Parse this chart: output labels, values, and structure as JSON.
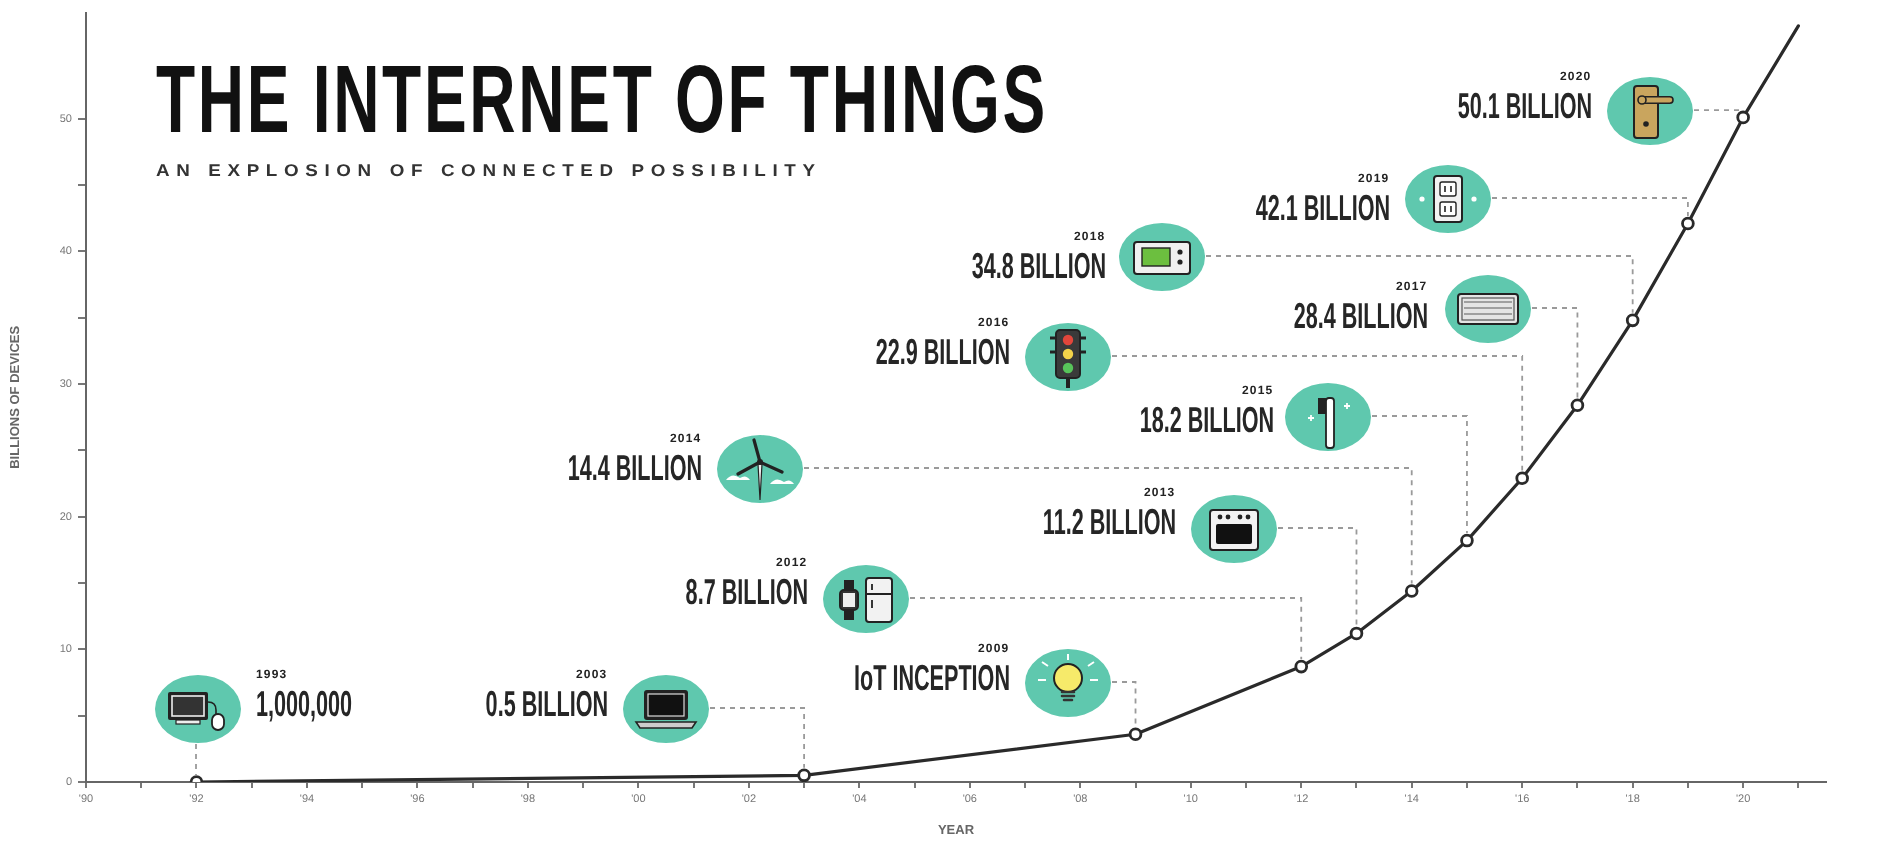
{
  "chart_data": {
    "type": "line",
    "title": "THE INTERNET OF THINGS",
    "subtitle": "AN EXPLOSION OF CONNECTED POSSIBILITY",
    "xlabel": "YEAR",
    "ylabel": "BILLIONS OF DEVICES",
    "xlim": [
      1990,
      2021.5
    ],
    "xticks": [
      {
        "value": 1990,
        "label": "'90"
      },
      {
        "value": 1991,
        "label": null
      },
      {
        "value": 1992,
        "label": "'92"
      },
      {
        "value": 1993,
        "label": null
      },
      {
        "value": 1994,
        "label": "'94"
      },
      {
        "value": 1995,
        "label": null
      },
      {
        "value": 1996,
        "label": "'96"
      },
      {
        "value": 1997,
        "label": null
      },
      {
        "value": 1998,
        "label": "'98"
      },
      {
        "value": 1999,
        "label": null
      },
      {
        "value": 2000,
        "label": "'00"
      },
      {
        "value": 2001,
        "label": null
      },
      {
        "value": 2002,
        "label": "'02"
      },
      {
        "value": 2003,
        "label": null
      },
      {
        "value": 2004,
        "label": "'04"
      },
      {
        "value": 2005,
        "label": null
      },
      {
        "value": 2006,
        "label": "'06"
      },
      {
        "value": 2007,
        "label": null
      },
      {
        "value": 2008,
        "label": "'08"
      },
      {
        "value": 2009,
        "label": null
      },
      {
        "value": 2010,
        "label": "'10"
      },
      {
        "value": 2011,
        "label": null
      },
      {
        "value": 2012,
        "label": "'12"
      },
      {
        "value": 2013,
        "label": null
      },
      {
        "value": 2014,
        "label": "'14"
      },
      {
        "value": 2015,
        "label": null
      },
      {
        "value": 2016,
        "label": "'16"
      },
      {
        "value": 2017,
        "label": null
      },
      {
        "value": 2018,
        "label": "'18"
      },
      {
        "value": 2019,
        "label": null
      },
      {
        "value": 2020,
        "label": "'20"
      },
      {
        "value": 2021,
        "label": null
      }
    ],
    "ylim": [
      0,
      58
    ],
    "yticks": [
      0,
      {
        "value": 5,
        "label": null
      },
      10,
      {
        "value": 15,
        "label": null
      },
      20,
      {
        "value": 25,
        "label": null
      },
      30,
      {
        "value": 35,
        "label": null
      },
      40,
      {
        "value": 45,
        "label": null
      },
      50
    ],
    "series": [
      {
        "color": "#2a2a2a",
        "marker": "circle",
        "x": [
          1992,
          2003,
          2009,
          2012,
          2013,
          2014,
          2015,
          2016,
          2017,
          2018,
          2019,
          2020
        ],
        "values": [
          0.001,
          0.5,
          3.6,
          8.7,
          11.2,
          14.4,
          18.2,
          22.9,
          28.4,
          34.8,
          42.1,
          50.1
        ]
      },
      {
        "color": "#2a2a2a",
        "marker": "none",
        "x": [
          2020,
          2021
        ],
        "values": [
          50.1,
          57
        ]
      }
    ],
    "annotations": [
      "1993",
      "1,000,000",
      "2003",
      "0.5 BILLION",
      "2009",
      "IoT INCEPTION",
      "2012",
      "8.7 BILLION",
      "2013",
      "11.2 BILLION",
      "2014",
      "14.4 BILLION",
      "2015",
      "18.2 BILLION",
      "2016",
      "22.9 BILLION",
      "2017",
      "28.4 BILLION",
      "2018",
      "34.8 BILLION",
      "2019",
      "42.1 BILLION",
      "2020",
      "50.1 BILLION"
    ]
  }
}
